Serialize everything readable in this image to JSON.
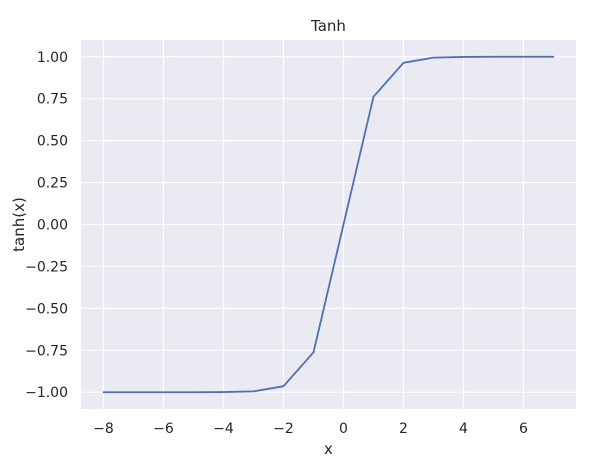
{
  "chart_data": {
    "type": "line",
    "title": "Tanh",
    "xlabel": "x",
    "ylabel": "tanh(x)",
    "x": [
      -8,
      -7,
      -6,
      -5,
      -4,
      -3,
      -2,
      -1,
      0,
      1,
      2,
      3,
      4,
      5,
      6,
      7
    ],
    "series": [
      {
        "values": [
          -1.0,
          -1.0,
          -1.0,
          -1.0,
          -0.999,
          -0.995,
          -0.964,
          -0.762,
          0.0,
          0.762,
          0.964,
          0.995,
          0.999,
          1.0,
          1.0,
          1.0
        ]
      }
    ],
    "xlim": [
      -8.75,
      7.75
    ],
    "ylim": [
      -1.1,
      1.1
    ],
    "xticks": [
      -8,
      -6,
      -4,
      -2,
      0,
      2,
      4,
      6
    ],
    "xtick_labels": [
      "−8",
      "−6",
      "−4",
      "−2",
      "0",
      "2",
      "4",
      "6"
    ],
    "yticks": [
      1.0,
      0.75,
      0.5,
      0.25,
      0.0,
      -0.25,
      -0.5,
      -0.75,
      -1.0
    ],
    "ytick_labels": [
      "1.00",
      "0.75",
      "0.50",
      "0.25",
      "0.00",
      "−0.25",
      "−0.50",
      "−0.75",
      "−1.00"
    ],
    "grid": true,
    "colors": {
      "background": "#eaeaf2",
      "grid": "#ffffff",
      "line": "#4c72b0",
      "text": "#262626"
    }
  }
}
